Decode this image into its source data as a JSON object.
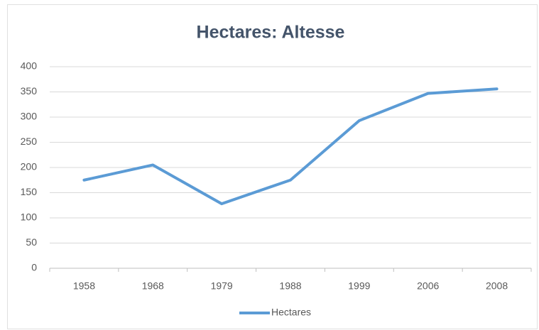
{
  "chart_data": {
    "type": "line",
    "title": "Hectares: Altesse",
    "categories": [
      "1958",
      "1968",
      "1979",
      "1988",
      "1999",
      "2006",
      "2008"
    ],
    "series": [
      {
        "name": "Hectares",
        "color": "#5b9bd5",
        "values": [
          175,
          205,
          128,
          175,
          293,
          347,
          356
        ]
      }
    ],
    "ylim": [
      0,
      400
    ],
    "yticks": [
      0,
      50,
      100,
      150,
      200,
      250,
      300,
      350,
      400
    ],
    "grid": true,
    "legend": "bottom"
  }
}
